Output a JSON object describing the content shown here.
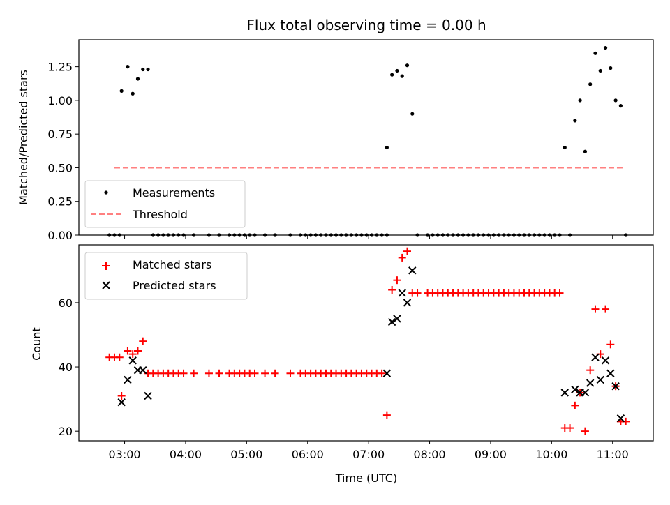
{
  "chart_data": [
    {
      "type": "scatter",
      "title": "Flux total observing time = 0.00 h",
      "xlabel": "",
      "ylabel": "Matched/Predicted stars",
      "ylim": [
        0,
        1.45
      ],
      "xlim": [
        "02:15",
        "11:40"
      ],
      "yticks": [
        "0.00",
        "0.25",
        "0.50",
        "0.75",
        "1.00",
        "1.25"
      ],
      "legend_position": "lower-left",
      "series": [
        {
          "name": "Measurements",
          "color": "#000000",
          "marker": "dot",
          "points": [
            [
              "02:45",
              0
            ],
            [
              "02:50",
              0
            ],
            [
              "02:55",
              0
            ],
            [
              "02:57",
              1.07
            ],
            [
              "03:03",
              1.25
            ],
            [
              "03:08",
              1.05
            ],
            [
              "03:13",
              1.16
            ],
            [
              "03:18",
              1.23
            ],
            [
              "03:23",
              1.23
            ],
            [
              "03:28",
              0
            ],
            [
              "03:33",
              0
            ],
            [
              "03:38",
              0
            ],
            [
              "03:43",
              0
            ],
            [
              "03:48",
              0
            ],
            [
              "03:53",
              0
            ],
            [
              "03:58",
              0
            ],
            [
              "04:08",
              0
            ],
            [
              "04:23",
              0
            ],
            [
              "04:33",
              0
            ],
            [
              "04:43",
              0
            ],
            [
              "04:48",
              0
            ],
            [
              "04:53",
              0
            ],
            [
              "04:58",
              0
            ],
            [
              "05:03",
              0
            ],
            [
              "05:08",
              0
            ],
            [
              "05:18",
              0
            ],
            [
              "05:28",
              0
            ],
            [
              "05:43",
              0
            ],
            [
              "05:53",
              0
            ],
            [
              "05:58",
              0
            ],
            [
              "06:03",
              0
            ],
            [
              "06:08",
              0
            ],
            [
              "06:13",
              0
            ],
            [
              "06:18",
              0
            ],
            [
              "06:23",
              0
            ],
            [
              "06:28",
              0
            ],
            [
              "06:33",
              0
            ],
            [
              "06:38",
              0
            ],
            [
              "06:43",
              0
            ],
            [
              "06:48",
              0
            ],
            [
              "06:53",
              0
            ],
            [
              "06:58",
              0
            ],
            [
              "07:03",
              0
            ],
            [
              "07:08",
              0
            ],
            [
              "07:13",
              0
            ],
            [
              "07:18",
              0
            ],
            [
              "07:18",
              0.65
            ],
            [
              "07:23",
              1.19
            ],
            [
              "07:28",
              1.22
            ],
            [
              "07:33",
              1.18
            ],
            [
              "07:38",
              1.26
            ],
            [
              "07:43",
              0.9
            ],
            [
              "07:48",
              0
            ],
            [
              "07:58",
              0
            ],
            [
              "08:03",
              0
            ],
            [
              "08:08",
              0
            ],
            [
              "08:13",
              0
            ],
            [
              "08:18",
              0
            ],
            [
              "08:23",
              0
            ],
            [
              "08:28",
              0
            ],
            [
              "08:33",
              0
            ],
            [
              "08:38",
              0
            ],
            [
              "08:43",
              0
            ],
            [
              "08:48",
              0
            ],
            [
              "08:53",
              0
            ],
            [
              "08:58",
              0
            ],
            [
              "09:03",
              0
            ],
            [
              "09:08",
              0
            ],
            [
              "09:13",
              0
            ],
            [
              "09:18",
              0
            ],
            [
              "09:23",
              0
            ],
            [
              "09:28",
              0
            ],
            [
              "09:33",
              0
            ],
            [
              "09:38",
              0
            ],
            [
              "09:43",
              0
            ],
            [
              "09:48",
              0
            ],
            [
              "09:53",
              0
            ],
            [
              "09:58",
              0
            ],
            [
              "10:03",
              0
            ],
            [
              "10:08",
              0
            ],
            [
              "10:13",
              0.65
            ],
            [
              "10:18",
              0
            ],
            [
              "10:23",
              0.85
            ],
            [
              "10:28",
              1.0
            ],
            [
              "10:33",
              0.62
            ],
            [
              "10:38",
              1.12
            ],
            [
              "10:43",
              1.35
            ],
            [
              "10:48",
              1.22
            ],
            [
              "10:53",
              1.39
            ],
            [
              "10:58",
              1.24
            ],
            [
              "11:03",
              1.0
            ],
            [
              "11:08",
              0.96
            ],
            [
              "11:13",
              0
            ]
          ]
        },
        {
          "name": "Threshold",
          "color": "#ff8080",
          "line": "dashed",
          "points": [
            [
              "02:50",
              0.5
            ],
            [
              "11:12",
              0.5
            ]
          ]
        }
      ]
    },
    {
      "type": "scatter",
      "title": "",
      "xlabel": "Time (UTC)",
      "ylabel": "Count",
      "ylim": [
        17,
        78
      ],
      "xlim": [
        "02:15",
        "11:40"
      ],
      "yticks": [
        "20",
        "40",
        "60"
      ],
      "xticks": [
        "03:00",
        "04:00",
        "05:00",
        "06:00",
        "07:00",
        "08:00",
        "09:00",
        "10:00",
        "11:00"
      ],
      "legend_position": "upper-left",
      "series": [
        {
          "name": "Matched stars",
          "color": "#ff0000",
          "marker": "plus",
          "points": [
            [
              "02:45",
              43
            ],
            [
              "02:50",
              43
            ],
            [
              "02:55",
              43
            ],
            [
              "02:57",
              31
            ],
            [
              "03:03",
              45
            ],
            [
              "03:08",
              44
            ],
            [
              "03:13",
              45
            ],
            [
              "03:18",
              48
            ],
            [
              "03:23",
              38
            ],
            [
              "03:28",
              38
            ],
            [
              "03:33",
              38
            ],
            [
              "03:38",
              38
            ],
            [
              "03:43",
              38
            ],
            [
              "03:48",
              38
            ],
            [
              "03:53",
              38
            ],
            [
              "03:58",
              38
            ],
            [
              "04:08",
              38
            ],
            [
              "04:23",
              38
            ],
            [
              "04:33",
              38
            ],
            [
              "04:43",
              38
            ],
            [
              "04:48",
              38
            ],
            [
              "04:53",
              38
            ],
            [
              "04:58",
              38
            ],
            [
              "05:03",
              38
            ],
            [
              "05:08",
              38
            ],
            [
              "05:18",
              38
            ],
            [
              "05:28",
              38
            ],
            [
              "05:43",
              38
            ],
            [
              "05:53",
              38
            ],
            [
              "05:58",
              38
            ],
            [
              "06:03",
              38
            ],
            [
              "06:08",
              38
            ],
            [
              "06:13",
              38
            ],
            [
              "06:18",
              38
            ],
            [
              "06:23",
              38
            ],
            [
              "06:28",
              38
            ],
            [
              "06:33",
              38
            ],
            [
              "06:38",
              38
            ],
            [
              "06:43",
              38
            ],
            [
              "06:48",
              38
            ],
            [
              "06:53",
              38
            ],
            [
              "06:58",
              38
            ],
            [
              "07:03",
              38
            ],
            [
              "07:08",
              38
            ],
            [
              "07:13",
              38
            ],
            [
              "07:18",
              25
            ],
            [
              "07:23",
              64
            ],
            [
              "07:28",
              67
            ],
            [
              "07:33",
              74
            ],
            [
              "07:38",
              76
            ],
            [
              "07:43",
              63
            ],
            [
              "07:48",
              63
            ],
            [
              "07:58",
              63
            ],
            [
              "08:03",
              63
            ],
            [
              "08:08",
              63
            ],
            [
              "08:13",
              63
            ],
            [
              "08:18",
              63
            ],
            [
              "08:23",
              63
            ],
            [
              "08:28",
              63
            ],
            [
              "08:33",
              63
            ],
            [
              "08:38",
              63
            ],
            [
              "08:43",
              63
            ],
            [
              "08:48",
              63
            ],
            [
              "08:53",
              63
            ],
            [
              "08:58",
              63
            ],
            [
              "09:03",
              63
            ],
            [
              "09:08",
              63
            ],
            [
              "09:13",
              63
            ],
            [
              "09:18",
              63
            ],
            [
              "09:23",
              63
            ],
            [
              "09:28",
              63
            ],
            [
              "09:33",
              63
            ],
            [
              "09:38",
              63
            ],
            [
              "09:43",
              63
            ],
            [
              "09:48",
              63
            ],
            [
              "09:53",
              63
            ],
            [
              "09:58",
              63
            ],
            [
              "10:03",
              63
            ],
            [
              "10:08",
              63
            ],
            [
              "10:13",
              21
            ],
            [
              "10:18",
              21
            ],
            [
              "10:23",
              28
            ],
            [
              "10:28",
              32
            ],
            [
              "10:33",
              20
            ],
            [
              "10:38",
              39
            ],
            [
              "10:43",
              58
            ],
            [
              "10:48",
              44
            ],
            [
              "10:53",
              58
            ],
            [
              "10:58",
              47
            ],
            [
              "11:03",
              34
            ],
            [
              "11:08",
              23
            ],
            [
              "11:13",
              23
            ]
          ]
        },
        {
          "name": "Predicted stars",
          "color": "#000000",
          "marker": "x",
          "points": [
            [
              "02:57",
              29
            ],
            [
              "03:03",
              36
            ],
            [
              "03:08",
              42
            ],
            [
              "03:13",
              39
            ],
            [
              "03:18",
              39
            ],
            [
              "03:23",
              31
            ],
            [
              "07:18",
              38
            ],
            [
              "07:23",
              54
            ],
            [
              "07:28",
              55
            ],
            [
              "07:33",
              63
            ],
            [
              "07:38",
              60
            ],
            [
              "07:43",
              70
            ],
            [
              "10:13",
              32
            ],
            [
              "10:23",
              33
            ],
            [
              "10:28",
              32
            ],
            [
              "10:33",
              32
            ],
            [
              "10:38",
              35
            ],
            [
              "10:43",
              43
            ],
            [
              "10:48",
              36
            ],
            [
              "10:53",
              42
            ],
            [
              "10:58",
              38
            ],
            [
              "11:03",
              34
            ],
            [
              "11:08",
              24
            ]
          ]
        }
      ]
    }
  ]
}
